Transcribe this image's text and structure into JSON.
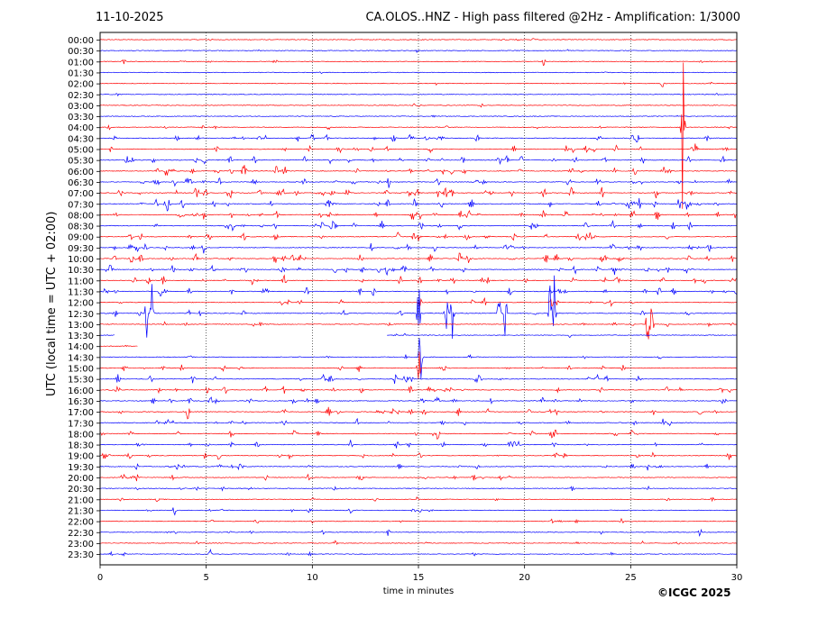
{
  "header": {
    "date": "11-10-2025",
    "station": "CA.OLOS..HNZ - High pass filtered @2Hz - Amplification: 1/3000"
  },
  "footer": {
    "copyright": "©ICGC 2025"
  },
  "colors": {
    "trace_a": "#ff0000",
    "trace_b": "#0000ff",
    "axis": "#000000",
    "grid": "#000000"
  },
  "chart_data": {
    "type": "line",
    "title": "CA.OLOS..HNZ - High pass filtered @2Hz - Amplification: 1/3000",
    "xlabel": "time in minutes",
    "ylabel": "UTC (local time = UTC + 02:00)",
    "xlim": [
      0,
      30
    ],
    "x_ticks": [
      0,
      5,
      10,
      15,
      20,
      25,
      30
    ],
    "grid": "vertical dotted lines at every 5 minutes",
    "y_categories": [
      "00:00",
      "00:30",
      "01:00",
      "01:30",
      "02:00",
      "02:30",
      "03:00",
      "03:30",
      "04:00",
      "04:30",
      "05:00",
      "05:30",
      "06:00",
      "06:30",
      "07:00",
      "07:30",
      "08:00",
      "08:30",
      "09:00",
      "09:30",
      "10:00",
      "10:30",
      "11:00",
      "11:30",
      "12:00",
      "12:30",
      "13:00",
      "13:30",
      "14:00",
      "14:30",
      "15:00",
      "15:30",
      "16:00",
      "16:30",
      "17:00",
      "17:30",
      "18:00",
      "18:30",
      "19:00",
      "19:30",
      "20:00",
      "20:30",
      "21:00",
      "21:30",
      "22:00",
      "22:30",
      "23:00",
      "23:30"
    ],
    "trace_colors": [
      "#ff0000",
      "#0000ff"
    ],
    "activity": [
      0.1,
      0.08,
      0.1,
      0.06,
      0.08,
      0.06,
      0.08,
      0.06,
      0.2,
      0.5,
      0.55,
      0.6,
      0.7,
      0.65,
      0.8,
      0.75,
      0.8,
      0.6,
      0.6,
      0.6,
      0.7,
      0.75,
      0.65,
      0.6,
      0.4,
      0.3,
      0.3,
      0.15,
      0.1,
      0.15,
      0.4,
      0.5,
      0.6,
      0.5,
      0.55,
      0.45,
      0.55,
      0.45,
      0.45,
      0.4,
      0.4,
      0.2,
      0.2,
      0.2,
      0.2,
      0.2,
      0.15,
      0.15
    ],
    "gaps": [
      {
        "row": 27,
        "from": 0.7,
        "to": 13.5
      },
      {
        "row": 28,
        "from": 1.8,
        "to": 30
      },
      {
        "row": 29,
        "from": 0,
        "to": 0
      }
    ],
    "events": [
      {
        "row": 2,
        "x": 1.1,
        "amp": 0.5
      },
      {
        "row": 2,
        "x": 20.9,
        "amp": 0.6
      },
      {
        "row": 4,
        "x": 26.5,
        "amp": 0.4
      },
      {
        "row": 8,
        "x": 0.4,
        "amp": 0.4
      },
      {
        "row": 8,
        "x": 27.45,
        "amp": 9.0
      },
      {
        "row": 9,
        "x": 10.0,
        "amp": 0.5
      },
      {
        "row": 10,
        "x": 19.5,
        "amp": 0.5
      },
      {
        "row": 10,
        "x": 24.3,
        "amp": 0.5
      },
      {
        "row": 11,
        "x": 2.5,
        "amp": 0.5
      },
      {
        "row": 12,
        "x": 8.3,
        "amp": 0.6
      },
      {
        "row": 14,
        "x": 7.5,
        "amp": 0.6
      },
      {
        "row": 14,
        "x": 26.2,
        "amp": 0.5
      },
      {
        "row": 15,
        "x": 24.9,
        "amp": 0.5
      },
      {
        "row": 15,
        "x": 28.2,
        "amp": 0.5
      },
      {
        "row": 16,
        "x": 6.2,
        "amp": 0.5
      },
      {
        "row": 22,
        "x": 26.5,
        "amp": 0.5
      },
      {
        "row": 23,
        "x": 30.0,
        "amp": 0.5
      },
      {
        "row": 25,
        "x": 2.2,
        "amp": 2.6
      },
      {
        "row": 25,
        "x": 2.45,
        "amp": 3.2
      },
      {
        "row": 25,
        "x": 15.0,
        "amp": 3.5
      },
      {
        "row": 25,
        "x": 16.3,
        "amp": 2.5
      },
      {
        "row": 25,
        "x": 16.6,
        "amp": 2.7
      },
      {
        "row": 25,
        "x": 18.8,
        "amp": 2.8
      },
      {
        "row": 25,
        "x": 19.1,
        "amp": 2.5
      },
      {
        "row": 25,
        "x": 21.2,
        "amp": 3.0
      },
      {
        "row": 25,
        "x": 21.4,
        "amp": 3.5
      },
      {
        "row": 26,
        "x": 25.8,
        "amp": 2.2
      },
      {
        "row": 26,
        "x": 26.0,
        "amp": 2.4
      },
      {
        "row": 28,
        "x": 14.8,
        "amp": 2.0
      },
      {
        "row": 29,
        "x": 15.1,
        "amp": 4.0
      },
      {
        "row": 30,
        "x": 15.0,
        "amp": 3.0
      },
      {
        "row": 31,
        "x": 13.9,
        "amp": 0.6
      },
      {
        "row": 34,
        "x": 4.1,
        "amp": 0.5
      },
      {
        "row": 39,
        "x": 1.7,
        "amp": 0.5
      },
      {
        "row": 39,
        "x": 25.8,
        "amp": 0.5
      },
      {
        "row": 43,
        "x": 3.5,
        "amp": 0.5
      },
      {
        "row": 43,
        "x": 11.8,
        "amp": 0.5
      },
      {
        "row": 45,
        "x": 13.6,
        "amp": 0.5
      },
      {
        "row": 47,
        "x": 5.2,
        "amp": 0.5
      }
    ]
  }
}
